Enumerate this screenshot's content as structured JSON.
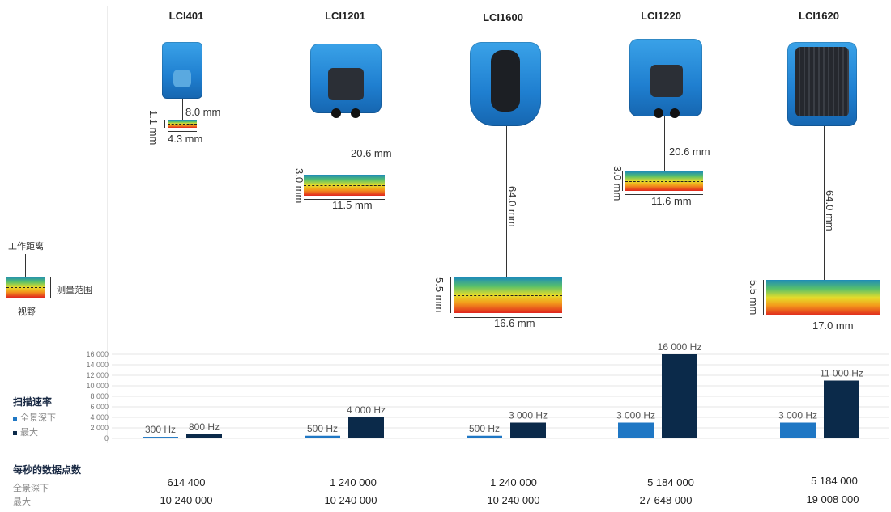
{
  "products": [
    {
      "name": "LCI401",
      "working_distance": "8.0 mm",
      "measuring_range": "1.1 mm",
      "fov": "4.3 mm"
    },
    {
      "name": "LCI1201",
      "working_distance": "20.6 mm",
      "measuring_range": "3.0 mm",
      "fov": "11.5 mm"
    },
    {
      "name": "LCI1600",
      "working_distance": "64.0 mm",
      "measuring_range": "5.5 mm",
      "fov": "16.6 mm"
    },
    {
      "name": "LCI1220",
      "working_distance": "20.6 mm",
      "measuring_range": "3.0 mm",
      "fov": "11.6 mm"
    },
    {
      "name": "LCI1620",
      "working_distance": "64.0 mm",
      "measuring_range": "5.5 mm",
      "fov": "17.0 mm"
    }
  ],
  "legend_diagram": {
    "working_distance": "工作距离",
    "measuring_range": "测量范围",
    "field_of_view": "视野"
  },
  "scan_rate": {
    "title": "扫描速率",
    "full_depth_label": "全景深下",
    "max_label": "最大"
  },
  "points_per_second": {
    "title": "每秒的数据点数",
    "full_depth_label": "全景深下",
    "max_label": "最大",
    "full_depth": [
      "614 400",
      "1 240 000",
      "1 240 000",
      "5 184 000",
      "5 184 000"
    ],
    "max": [
      "10 240 000",
      "10 240 000",
      "10 240 000",
      "27 648 000",
      "19 008 000"
    ]
  },
  "colors": {
    "full_depth": "#1f77c4",
    "max": "#0b2a4a"
  },
  "chart_data": {
    "type": "bar",
    "categories": [
      "LCI401",
      "LCI1201",
      "LCI1600",
      "LCI1220",
      "LCI1620"
    ],
    "series": [
      {
        "name": "全景深下",
        "values": [
          300,
          500,
          500,
          3000,
          3000
        ],
        "labels": [
          "300 Hz",
          "500 Hz",
          "500 Hz",
          "3 000 Hz",
          "3 000 Hz"
        ]
      },
      {
        "name": "最大",
        "values": [
          800,
          4000,
          3000,
          16000,
          11000
        ],
        "labels": [
          "800 Hz",
          "4 000 Hz",
          "3 000 Hz",
          "16 000 Hz",
          "11 000 Hz"
        ]
      }
    ],
    "ylim": [
      0,
      16000
    ],
    "yticks": [
      "0",
      "2 000",
      "4 000",
      "6 000",
      "8 000",
      "10 000",
      "12 000",
      "14 000",
      "16 000"
    ],
    "ytick_values": [
      0,
      2000,
      4000,
      6000,
      8000,
      10000,
      12000,
      14000,
      16000
    ],
    "grid": true
  }
}
